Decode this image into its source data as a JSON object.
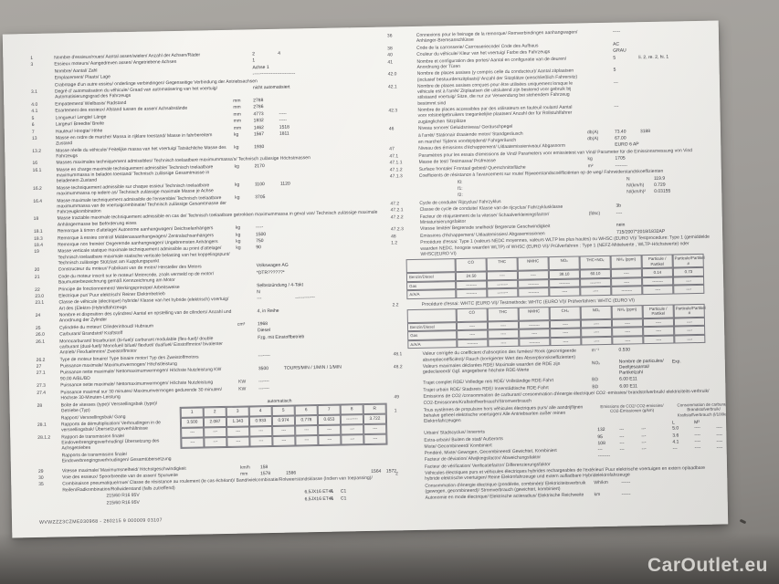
{
  "background": {
    "watermark": "CarOutlet.eu"
  },
  "page": {
    "left": {
      "rows_a": [
        {
          "n": "1",
          "l": "Nombre d'essieux/roues/ Aantal assen/wielen/ Anzahl der Achsen/Räder",
          "a": "2",
          "b": "4"
        },
        {
          "n": "3",
          "l": "Essieux moteurs/ Aangedreven assen/ Angetriebene Achsen",
          "a": "1"
        },
        {
          "l": "Nombre/ Aantal/ Zahl",
          "a": "Achse 1"
        },
        {
          "l": "Emplacement/ Plaats/ Lage",
          "a": "----------------------------"
        },
        {
          "l": "Crabotage d'un autre essieu/ onderlinge verbindingen/ Gegenseitige Verbindung der Antriebsachsen",
          "cls": "wide"
        },
        {
          "n": "3.1",
          "l": "Degré d' automatisation du véhicule/ Graad van automatisering van het voertuig/ Automatisierungsgrad des Fahrzeugs",
          "a": "nicht automatisiert"
        },
        {
          "n": "4.0",
          "l": "Empattement/ Wielbasis/ Radstand",
          "u": "mm",
          "a": "2788"
        },
        {
          "n": "4.1",
          "l": "Ecartement des essieux/ Afstand tussen de assen/ Achsabstände",
          "u": "mm",
          "a": "2786"
        },
        {
          "n": "5",
          "l": "Longueur/ Lengte/ Länge",
          "u": "mm",
          "a": "4773",
          "b": "-----"
        },
        {
          "n": "6",
          "l": "Largeur/ Breedte/ Breite",
          "u": "mm",
          "a": "1832",
          "b": "-----"
        },
        {
          "n": "7",
          "l": "Hauteur/ Hoogte/ Höhe",
          "u": "mm",
          "a": "1462",
          "b": "1518"
        },
        {
          "n": "13",
          "l": "Masse en ordre de marche/ Massa in rijklare toestand/ Masse in fahrbereitem Zustand",
          "u": "kg",
          "a": "1567",
          "b": "1811"
        },
        {
          "n": "13.2",
          "l": "Masse réelle du véhicule/ Feitelijke massa van het voertuig/ Tatsächliche Masse des Fahrzeugs",
          "u": "kg",
          "a": "1930"
        },
        {
          "n": "16",
          "l": "Masses maximales techniquement admissibles/ Technisch toelaatbare maximummassa's/ Technisch zulässige Höchstmassen",
          "cls": "wide"
        },
        {
          "n": "16.1",
          "l": "Masse en charge maximale techniquement admissible/ Technisch toelaatbare maximummassa in beladen toestand/ Technisch zulässige Gesamtmasse in beladenem Zustand",
          "u": "kg",
          "a": "2170"
        },
        {
          "n": "16.2",
          "l": "Masse techniquement admissible sur chaque essieu/ Technisch toelaatbare maximummassa op iedere as/ Technisch zulässige maximale Masse je Achse",
          "u": "kg",
          "a": "1100",
          "b": "1120"
        },
        {
          "n": "16.4",
          "l": "Masse maximale techniquement admissible de l'ensemble/ Technisch toelaatbare maximummassa van de voertuigcombinatie/ Technisch zulässige Gesamtmasse der Fahrzeugkombination",
          "u": "kg",
          "a": "3705"
        },
        {
          "n": "18",
          "l": "Masse tractable maximale techniquement admissible en cas de/ Technisch toelaatbare getrokken maximummassa in geval van/ Technisch zulässige maximale Anhängermasse bei Beförderung eines",
          "cls": "wide"
        },
        {
          "n": "18.1",
          "l": "Remorque à timon d'attelage/ Autonome aanhangwagen/ Deichselanhängers",
          "u": "kg",
          "a": "-----"
        },
        {
          "n": "18.3",
          "l": "Remorque à essieu central/ Middenasaanhangwagen/ Zentralachsanhängers",
          "u": "kg",
          "a": "1500"
        },
        {
          "n": "18.4",
          "l": "Remorque non freinée/ Ongeremde aanhangwagen/ Ungebremsten Anhängers",
          "u": "kg",
          "a": "750"
        },
        {
          "n": "19",
          "l": "Masse verticale statique maximale techniquement admissible au point d'attelage/ Technisch toelaatbare maximale statische verticale belasting van het koppelingspunt/ Technisch zulässige Stützlast am Kupplungspunkt",
          "u": "kg",
          "a": "90"
        },
        {
          "n": "20",
          "l": "Constructeur du moteur/ Fabrikant van de motor/ Hersteller des Motors",
          "a": "Volkswagen AG"
        },
        {
          "n": "21",
          "l": "Code du moteur inscrit sur le moteur/ Motorcode, zoals vermeld op de motor/ Baumusterbezeichnung gemäß Kennzeichnung am Motor",
          "a": "*DTR??????*"
        },
        {
          "n": "22",
          "l": "Principe de fonctionnement/ Werkingsprincipe/ Arbeitsweise",
          "a": "Selbstzündung / 4-Takt"
        },
        {
          "n": "23.0",
          "l": "Electrique pur/ Puur elektrisch/ Reiner Elektrobetrieb",
          "a": "N"
        },
        {
          "n": "23.1",
          "l": "Classe de véhicule (électrique) hybride/ Klasse van het hybride (elektrisch) voertuig/ Art des (Elektro-)Hybridfahrzeugs",
          "a": "---",
          "b": "          -------------"
        },
        {
          "n": "24",
          "l": "Nombre et disposition des cylindres/ Aantal en opstelling van de cilinders/ Anzahl und Anordnung der Zylinder",
          "a": "4, in Reihe"
        },
        {
          "n": "25",
          "l": "Cylindrée du moteur/ Cilinderinhoud/ Hubraum",
          "u": "cm³",
          "a": "1968"
        },
        {
          "n": "26.0",
          "l": "Carburant/ Brandstof/ Kraftstoff",
          "a": "Diesel"
        },
        {
          "n": "26.1",
          "l": "Monocarburant/ bicarburant (bi-fuel)/ carburant modulable (flex-fuel)/ double carburant (dual-fuel)/ Monofuel/ bifuel/ flexfuel/ dualfuel/ Einstoffmotor/ bivalenter Antrieb/ Flexfuelmotor/ Zweistoffmotor",
          "a": "Fzg. mit Einstoffbetrieb"
        },
        {
          "n": "26.2",
          "l": "Type de moteur binaire/ Type binaire motor/ Typ des Zweistoffmotors",
          "a": "--------"
        },
        {
          "n": "27",
          "l": "Puissance maximale/ Maximumvermogen/ Höchstleistung",
          "cls": "wide"
        },
        {
          "n": "27.1",
          "l": "Puissance nette maximale/ Nettomaximumvermogen/ Höchste Nutzleistung KW 90.00 A/BL/BD",
          "a": "3500",
          "b": "TOURS/MIN / 1/MIN / 1/MIN"
        },
        {
          "n": "27.3",
          "l": "Puissance nette maximale/ Nettomaximumvermogen/ Höchste Nutzleistung",
          "u": "KW",
          "a": "-------"
        },
        {
          "n": "27.4",
          "l": "Puissance maximal sur 30 minutes/ Maximumvermogen gedurende 30 minuten/ Höchste 30-Minuten-Leistung",
          "u": "KW",
          "a": "-------"
        }
      ],
      "gear": {
        "type_value": "automatisch",
        "label_rows": [
          {
            "n": "28",
            "l": "Boîte de vitesses (type)/ Versnellingsbak (type)/ Getriebe (Typ)"
          },
          {
            "l": "Rapport/ Versnellingsbak/ Gang"
          },
          {
            "n": "28.1",
            "l": "Rapports de démultiplication/ Verhoudingen in de versnellingsbak/ Übersetzungsverhältnisse"
          },
          {
            "n": "28.1.2",
            "l": "Rapport de transmission finale/ Eindoverbrengingsverhouding/ Übersetzung des Achsgetriebes"
          },
          {
            "l": "Rapports de transmission finale/ Eindoverbrengingsverhoudingen/ Gesamtübersetzung"
          }
        ],
        "table": {
          "header": [
            "1",
            "2",
            "3",
            "4",
            "5",
            "6",
            "7",
            "8",
            "R"
          ],
          "rows": [
            [
              "3.500",
              "2.087",
              "1.343",
              "0.933",
              "0.974",
              "0.778",
              "0.653",
              "--------",
              "3.722"
            ],
            [
              "---",
              "---",
              "---",
              "---",
              "---",
              "---",
              "---",
              "---",
              "---"
            ],
            [
              "---",
              "---",
              "---",
              "---",
              "---",
              "---",
              "---",
              "---",
              "---"
            ]
          ]
        }
      },
      "rows_b": [
        {
          "n": "29",
          "l": "Vitesse maximale/ Maximumsnelheid/ Höchstgeschwindigkeit",
          "u": "km/h",
          "a": "158"
        },
        {
          "n": "30",
          "l": "Voie des essieux/ Spoorbreedte van de assen/ Spurweite",
          "u": "mm",
          "a": "1578",
          "b": "1586",
          "c": "1564    1572"
        },
        {
          "n": "35",
          "l": "Combinaison pneumatique/roue/ Classe de résistance au roulement (le cas échéant)/ Band/wielcombinatie/Rolweerstandsklasse (Indien van toepassing)/ Reifen/Radkombination/Rollwiderstand (falls zutreffend)",
          "cls": "wide"
        },
        {
          "l": "215/60 R16 95V",
          "a": "6,5JX16 ET41",
          "b": "A      C1",
          "cls": "tyre"
        },
        {
          "l": "215/60 R16 95V",
          "a": "6,5JX16 ET41",
          "b": "A      C1",
          "cls": "tyre"
        }
      ],
      "footer_code": "WVWZZZ3CZME030968 - 260215 9 000009   03107"
    },
    "right": {
      "rows_a": [
        {
          "n": "36",
          "l": "Connexions pour le freinage de la remorque/ Remverbindingen aanhangwagen/ Anhänger-Bremsanschlüsse",
          "a": "-----"
        },
        {
          "n": "38",
          "l": "Code de la carrosserie/ Carrosseriecode/ Code des Aufbaus",
          "a": "AC"
        },
        {
          "n": "40",
          "l": "Couleur du véhicule/ Kleur van het voertuig/ Farbe des Fahrzeugs",
          "a": "GRAU"
        },
        {
          "n": "41",
          "l": "Nombre et configuration des portes/ Aantal en configuratie van de deuren/ Anordnung der Türen",
          "a": "5",
          "b": "li. 2, re. 2, hi. 1"
        },
        {
          "n": "42.0",
          "l": "Nombre de places assises (y compris celle du conducteur)/ Aantal zitplaatsen (inclusief bestuurderszitplaats)/ Anzahl der Sitzplätze (einschließlich Fahrersitz)",
          "a": "5"
        },
        {
          "n": "42.1",
          "l": "Nombre de places assises conçues pour être utilisées uniquement lorsque le véhicule est à l'arrêt/ Zitplaatsen die uitsluitend zijn bestemd voor gebruik bij stilstaand voertuig/ Sitze, die nur zur Verwendung bei stehendem Fahrzeug bestimmt sind",
          "a": "---"
        },
        {
          "n": "42.3",
          "l": "Nombre de places accessibles par des utilisateurs en fauteuil roulant/ Aantal voor rolstoelgebruikers toegankelijke plaatsen/ Anzahl der für Rollstuhlfahrer zugänglichen Sitzplätze",
          "a": "---"
        },
        {
          "n": "46",
          "l": "Niveau sonore/ Geluidsniveau/ Geräuschpegel",
          "cls": "wide"
        },
        {
          "l": "à l'arrêt/ Stationair draaiende motor/ Standgeräusch",
          "u": "db(A)",
          "a": "73.40",
          "b": "3188"
        },
        {
          "l": "en marche/ Tijdens voorbijrijdend/ Fahrgeräusch",
          "u": "db(A)",
          "a": "67.00"
        },
        {
          "n": "47",
          "l": "Niveau des émissions d'échappement/ Uitlaatemissieniveau/ Abgasnorm",
          "a": "EURO 6 AP"
        },
        {
          "n": "47.1",
          "l": "Paramètres pour les essais d'émissions de Vind/ Parameters voor emissietest van Vind/ Parameter für die Emissionsmessung von Vind",
          "cls": "wide"
        },
        {
          "n": "47.1.1",
          "l": "Masse de test/ Testmassa/ Prüfmasse",
          "u": "kg",
          "a": "1705"
        },
        {
          "n": "47.1.2",
          "l": "Surface frontale/ Frontaal gebied/ Querschnittsfläche",
          "u": "m²",
          "a": "--------"
        },
        {
          "n": "47.1.3",
          "l": "Coefficients de résistance à l'avancement sur route/ Rijweerstandscoëfficiënten op de weg/ Fahrwiderstandskoeffizienten",
          "cls": "wide"
        },
        {
          "l": "f0:",
          "u": "N",
          "a": "119.9",
          "cls": "ind"
        },
        {
          "l": "f1:",
          "u": "N/(km/h)",
          "a": "0.729",
          "cls": "ind"
        },
        {
          "l": "f2:",
          "u": "N/(km/h)²",
          "a": "0.03155",
          "cls": "ind"
        },
        {
          "n": "47.2",
          "l": "Cycle de conduite/ Rijcyclus/ Fahrzyklus",
          "cls": "wide"
        },
        {
          "n": "47.2.1",
          "l": "Classe de cycle de conduite/ Klasse van de rijcyclus/ Fahrzyklusklasse",
          "a": "3b"
        },
        {
          "n": "47.2.2",
          "l": "Facteur de réajustement de la vitesse/ Schaalverkleiningsfactor/ Miniaturisierungsfaktor",
          "u": "(fdsc)",
          "a": "----"
        },
        {
          "n": "47.2.3",
          "l": "Vitesse limitée/ Begrensde snelheid/ Begrenzte Geschwindigkeit",
          "a": "nein"
        },
        {
          "n": "48",
          "l": "Emissions d'échappement/ Uitlaatemissies/ Abgasemissionen",
          "a": "715/2007*2018/1832AP"
        },
        {
          "n": "1.2",
          "l": "Procédure d'essai: Type 1 (valeurs NEDC moyennes, valeurs WLTP les plus hautes) ou WHSC (EURO VI)/ Testprocedure: Type 1 (gemiddelde waarden NEDC, hoogste waarden WLTP) of WHSC (EURO VI)/ Prüfverfahren : Type 1 (NEFZ-Mittelwerte , WLTP-Höchstwerte) oder WHSC(EURO VI)",
          "cls": "wide"
        }
      ],
      "emissions1": {
        "cols": [
          "CO",
          "THC",
          "NMHC",
          "NOₓ",
          "THC+NOₓ",
          "NH₃ (ppm)",
          "Particule / Partikel",
          "Particule/Partikel #"
        ],
        "rows": [
          [
            "Benzin/Diesel",
            "24.50",
            "----",
            "----",
            "38.10",
            "60.10",
            "----",
            "0.14",
            "0.73"
          ],
          [
            "Gas",
            "--------",
            "--------",
            "--------",
            "--------",
            "--------",
            "----",
            "--------",
            "----"
          ],
          [
            "A/A/A",
            "--------",
            "--------",
            "--------",
            "----",
            "----",
            "--------",
            "----",
            "----"
          ]
        ]
      },
      "rows_b": [
        {
          "n": "2.2",
          "l": "Procédure d'essai: WHTC (EURO VI)/ Testmethode: WHTC (EURO VI)/ Prüfverfahren: WHTC (EURO VI)",
          "cls": "wide"
        }
      ],
      "emissions2": {
        "cols": [
          "CO",
          "THC",
          "NMHC",
          "CH₄",
          "NOₓ",
          "NH₃ (ppm)",
          "Particule / Partikel",
          "Particule/Partikel #"
        ],
        "rows": [
          [
            "Benzin/Diesel",
            "----",
            "----",
            "--------",
            "----",
            "----",
            "----",
            "----",
            "----"
          ],
          [
            "Gas",
            "----",
            "----",
            "----",
            "----",
            "----",
            "----",
            "----",
            "----"
          ],
          [
            "A/A/A",
            "--------",
            "----",
            "--------",
            "----",
            "----",
            "----",
            "----",
            "----"
          ]
        ]
      },
      "rows_c": [
        {
          "n": "48.1",
          "l": "Valeur corrigée du coefficient d'absorption des fumées/ Rook (gecorrigeerde absorptiecoëfficiënt)/ Rauch (korrigierter Wert des Absorptionskoeffizienten)",
          "u": "m⁻¹",
          "a": "0.530"
        },
        {
          "n": "48.2",
          "l": "Valeurs maximales déclarées RDE/ Maximale waarden die RDE zijn gedeclareerd/ Ggf. angegebene höchste RDE-Werte",
          "u": "NOₓ",
          "a": "Nombre de particules/ Deeltjesaantal/ Partikelzahl",
          "b": "Exp.",
          "cls": "rde"
        },
        {
          "l": "Trajet complet RDE/ Volledige reis RDE/ Vollständige RDE-Fahrt",
          "u": "BD",
          "a": "6.00 E11"
        },
        {
          "l": "Trajet urbain RDE/ Stadsreis RDE/ Innerstädtische RDE-Fahrt",
          "u": "BD",
          "a": "6.00 E11"
        },
        {
          "n": "49",
          "l": "Emissions de CO2 /consommation de carburant/ consommation d'énergie électrique/ CO2 -emissies/ brandstofverbruik/ elektriciteits-verbruik/ CO2-Emissionen/Kraftstoffverbrauch/Stromverbrauch",
          "cls": "wide"
        }
      ],
      "co2": {
        "n": "1",
        "label": "Tous systèmes de propulsion hors véhicules électriques purs/ alle aandrijflijnen behalve geheel elektrische voertuigen/ Alle Antriebsarten außer reinen Elektrofahrzeugen",
        "head_co2": "Emissions de CO2/ CO2-emissies/ CO2-Emissionen (g/km)",
        "head_fuel": "Consommation de carburant/ Brandstofverbruik/ Kraftstoffverbrauch (l/100km)",
        "sub": [
          "",
          "",
          "",
          "L",
          "M³",
          ""
        ],
        "rows": [
          [
            "Urbain/ Stadscyclus/ Innerorts",
            "132",
            "---",
            "---",
            "5.0",
            "----",
            "----"
          ],
          [
            "Extra-urbain/ Buiten de stad/ Außerorts",
            "95",
            "---",
            "---",
            "3.6",
            "----",
            "----"
          ],
          [
            "Mixte/ Gecombineerd/ Kombiniert",
            "108",
            "---",
            "---",
            "4.1",
            "----",
            "----"
          ],
          [
            "Pondéré, Mixte/ Gewogen, Gecombineerd/ Gewichtet, Kombiniert",
            "---",
            "---",
            "---",
            "---",
            "----",
            "----"
          ],
          [
            "Facteur de déviation/ Afwijkingsfactor/ Abweichungsfaktor",
            "--------",
            "",
            "",
            "",
            "",
            ""
          ],
          [
            "Facteur de vérification/ Verificatiefactor/ Differenzierungsfaktor",
            "",
            "",
            "",
            "",
            "",
            ""
          ]
        ]
      },
      "rows_d": [
        {
          "n": "2",
          "l": "Véhicules électriques purs et véhicules électriques hybrides rechargeables de l'extérieur/ Puur elektrische voertuigen en extern oplaadbare hybride elektrische voertuigen/ Reine Elektrofahrzeuge und extern aufladbare Hybridelektrofahrzeuge",
          "cls": "wide"
        },
        {
          "l": "Consommation d'énergie électrique (pondérée, combinée)/ Elektriciteitsverbruik (gewogen, gecombineerd)/ Stromverbrauch (gewichtet, kombiniert)",
          "u": "Wh/km",
          "a": "------"
        },
        {
          "l": "Autonomie en mode électrique/ Elektrische actieradius/ Elektrische Reichweite",
          "u": "km",
          "a": "------"
        }
      ]
    }
  }
}
